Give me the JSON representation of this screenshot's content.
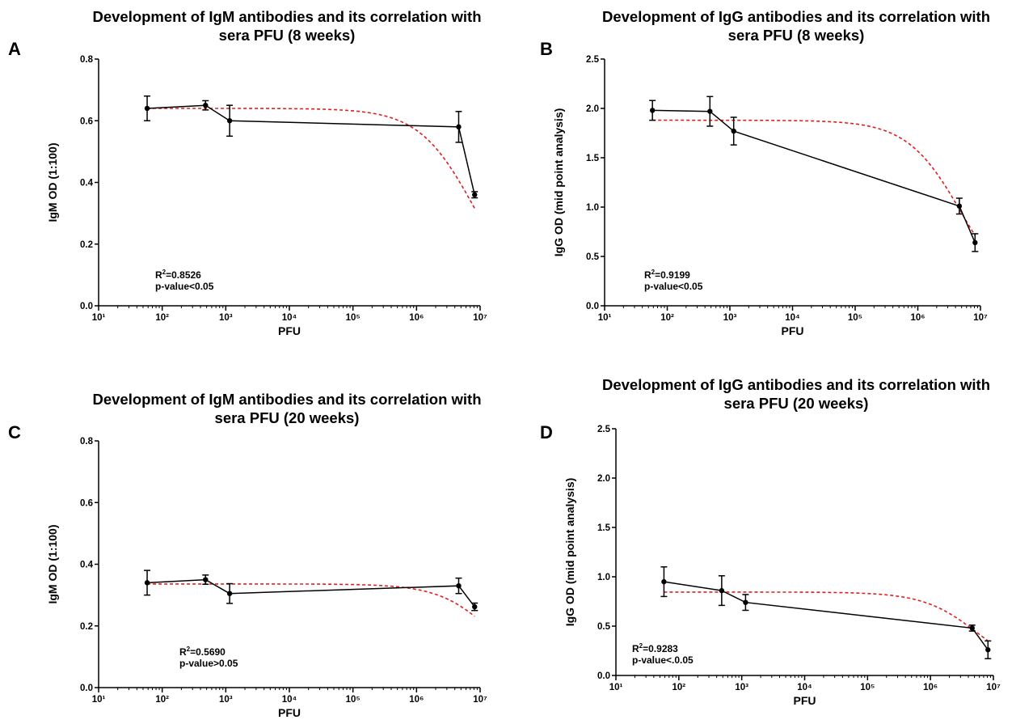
{
  "chart_data": [
    {
      "panel": "A",
      "type": "line",
      "title": "Development of IgM antibodies and its correlation with sera PFU (8 weeks)",
      "title_lines": [
        "Development of IgM antibodies and its correlation with",
        "sera PFU (8 weeks)"
      ],
      "xlabel": "PFU",
      "ylabel": "IgM OD (1:100)",
      "xscale": "log",
      "xlim": [
        10,
        10000000
      ],
      "ylim": [
        0,
        0.8
      ],
      "yticks": [
        0.0,
        0.2,
        0.4,
        0.6,
        0.8
      ],
      "xticks": [
        10,
        100,
        1000,
        10000,
        100000,
        1000000,
        10000000
      ],
      "xtick_labels": [
        "10¹",
        "10²",
        "10³",
        "10⁴",
        "10⁵",
        "10⁶",
        "10⁷"
      ],
      "series": [
        {
          "type": "line",
          "color": "#000000",
          "x": [
            58,
            480,
            1150,
            4600000,
            8200000
          ],
          "y": [
            0.64,
            0.65,
            0.6,
            0.58,
            0.36
          ],
          "err": [
            0.04,
            0.015,
            0.05,
            0.05,
            0.01
          ]
        },
        {
          "type": "fit",
          "color": "#e02020",
          "style": "dashed",
          "top": 0.64,
          "ic50": 8000000,
          "x_from": 58,
          "x_to": 8200000
        }
      ],
      "stats": {
        "r2_value": "=0.8526",
        "p_value": "p-value<0.05"
      }
    },
    {
      "panel": "B",
      "type": "line",
      "title": "Development of IgG antibodies and its correlation with sera PFU (8 weeks)",
      "title_lines": [
        "Development of IgG antibodies and its correlation with",
        "sera PFU (8 weeks)"
      ],
      "xlabel": "PFU",
      "ylabel": "IgG OD (mid point analysis)",
      "xscale": "log",
      "xlim": [
        10,
        10000000
      ],
      "ylim": [
        0,
        2.5
      ],
      "yticks": [
        0.0,
        0.5,
        1.0,
        1.5,
        2.0,
        2.5
      ],
      "xticks": [
        10,
        100,
        1000,
        10000,
        100000,
        1000000,
        10000000
      ],
      "xtick_labels": [
        "10¹",
        "10²",
        "10³",
        "10⁴",
        "10⁵",
        "10⁶",
        "10⁷"
      ],
      "series": [
        {
          "type": "line",
          "color": "#000000",
          "x": [
            58,
            480,
            1150,
            4600000,
            8200000
          ],
          "y": [
            1.98,
            1.97,
            1.77,
            1.01,
            0.64
          ],
          "err": [
            0.1,
            0.15,
            0.14,
            0.08,
            0.09
          ]
        },
        {
          "type": "fit",
          "color": "#e02020",
          "style": "dashed",
          "top": 1.88,
          "ic50": 5000000,
          "x_from": 58,
          "x_to": 8200000
        }
      ],
      "stats": {
        "r2_value": "=0.9199",
        "p_value": "p-value<0.05"
      }
    },
    {
      "panel": "C",
      "type": "line",
      "title": "Development of IgM antibodies and its correlation with sera PFU (20 weeks)",
      "title_lines": [
        "Development of IgM antibodies and its correlation with",
        "sera PFU (20 weeks)"
      ],
      "xlabel": "PFU",
      "ylabel": "IgM OD (1:100)",
      "xscale": "log",
      "xlim": [
        10,
        10000000
      ],
      "ylim": [
        0,
        0.8
      ],
      "yticks": [
        0.0,
        0.2,
        0.4,
        0.6,
        0.8
      ],
      "xticks": [
        10,
        100,
        1000,
        10000,
        100000,
        1000000,
        10000000
      ],
      "xtick_labels": [
        "10¹",
        "10²",
        "10³",
        "10⁴",
        "10⁵",
        "10⁶",
        "10⁷"
      ],
      "series": [
        {
          "type": "line",
          "color": "#000000",
          "x": [
            58,
            480,
            1150,
            4600000,
            8200000
          ],
          "y": [
            0.34,
            0.35,
            0.305,
            0.33,
            0.262
          ],
          "err": [
            0.04,
            0.015,
            0.032,
            0.025,
            0.012
          ]
        },
        {
          "type": "fit",
          "color": "#e02020",
          "style": "dashed",
          "top": 0.336,
          "ic50": 18000000,
          "x_from": 58,
          "x_to": 8200000
        }
      ],
      "stats": {
        "r2_value": "=0.5690",
        "p_value": "p-value>0.05"
      }
    },
    {
      "panel": "D",
      "type": "line",
      "title": "Development of IgG antibodies and its correlation with sera PFU (20 weeks)",
      "title_lines": [
        "Development of IgG antibodies and its correlation with",
        "sera PFU (20 weeks)"
      ],
      "xlabel": "PFU",
      "ylabel": "IgG OD (mid point analysis)",
      "xscale": "log",
      "xlim": [
        10,
        10000000
      ],
      "ylim": [
        0,
        2.5
      ],
      "yticks": [
        0.0,
        0.5,
        1.0,
        1.5,
        2.0,
        2.5
      ],
      "xticks": [
        10,
        100,
        1000,
        10000,
        100000,
        1000000,
        10000000
      ],
      "xtick_labels": [
        "10¹",
        "10²",
        "10³",
        "10⁴",
        "10⁵",
        "10⁶",
        "10⁷"
      ],
      "series": [
        {
          "type": "line",
          "color": "#000000",
          "x": [
            58,
            480,
            1150,
            4600000,
            8200000
          ],
          "y": [
            0.95,
            0.86,
            0.74,
            0.48,
            0.26
          ],
          "err": [
            0.15,
            0.15,
            0.08,
            0.03,
            0.09
          ]
        },
        {
          "type": "fit",
          "color": "#e02020",
          "style": "dashed",
          "top": 0.845,
          "ic50": 5800000,
          "x_from": 58,
          "x_to": 8200000
        }
      ],
      "stats": {
        "r2_value": "=0.9283",
        "p_value": "p-value<.0.05"
      }
    }
  ]
}
